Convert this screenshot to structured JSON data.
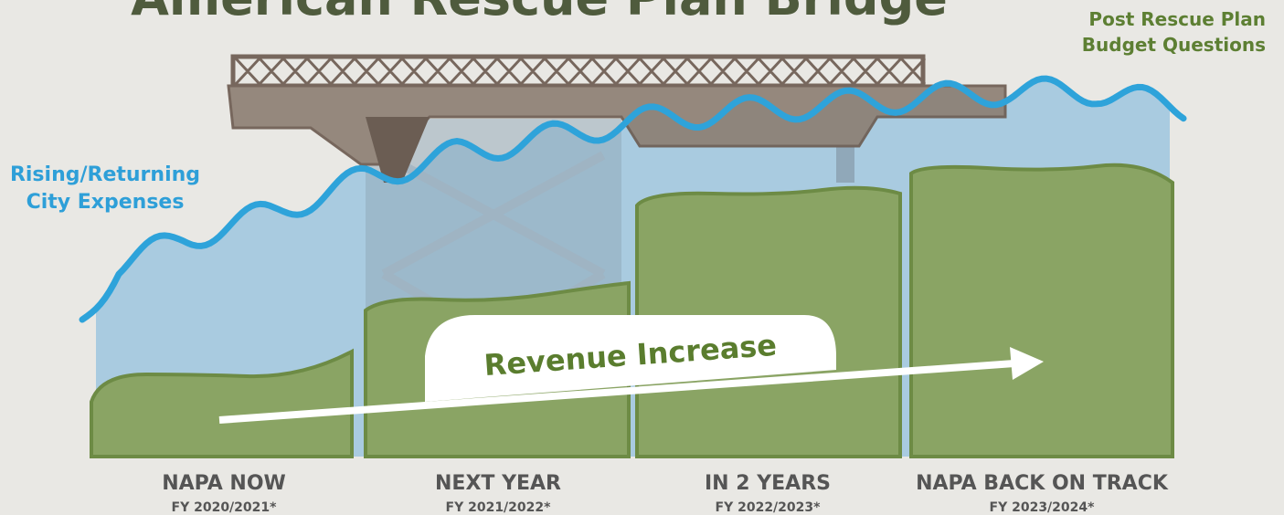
{
  "title": "American Rescue Plan Bridge",
  "left_label": [
    "Rising/Returning",
    "City Expenses"
  ],
  "right_label": [
    "Post Rescue Plan",
    "Budget Questions"
  ],
  "banner": "Revenue Increase",
  "columns": [
    {
      "name": "NAPA NOW",
      "period": "FY 2020/2021*"
    },
    {
      "name": "NEXT YEAR",
      "period": "FY 2021/2022*"
    },
    {
      "name": "IN 2 YEARS",
      "period": "FY 2022/2023*"
    },
    {
      "name": "NAPA BACK ON TRACK",
      "period": "FY 2023/2024*"
    }
  ]
}
